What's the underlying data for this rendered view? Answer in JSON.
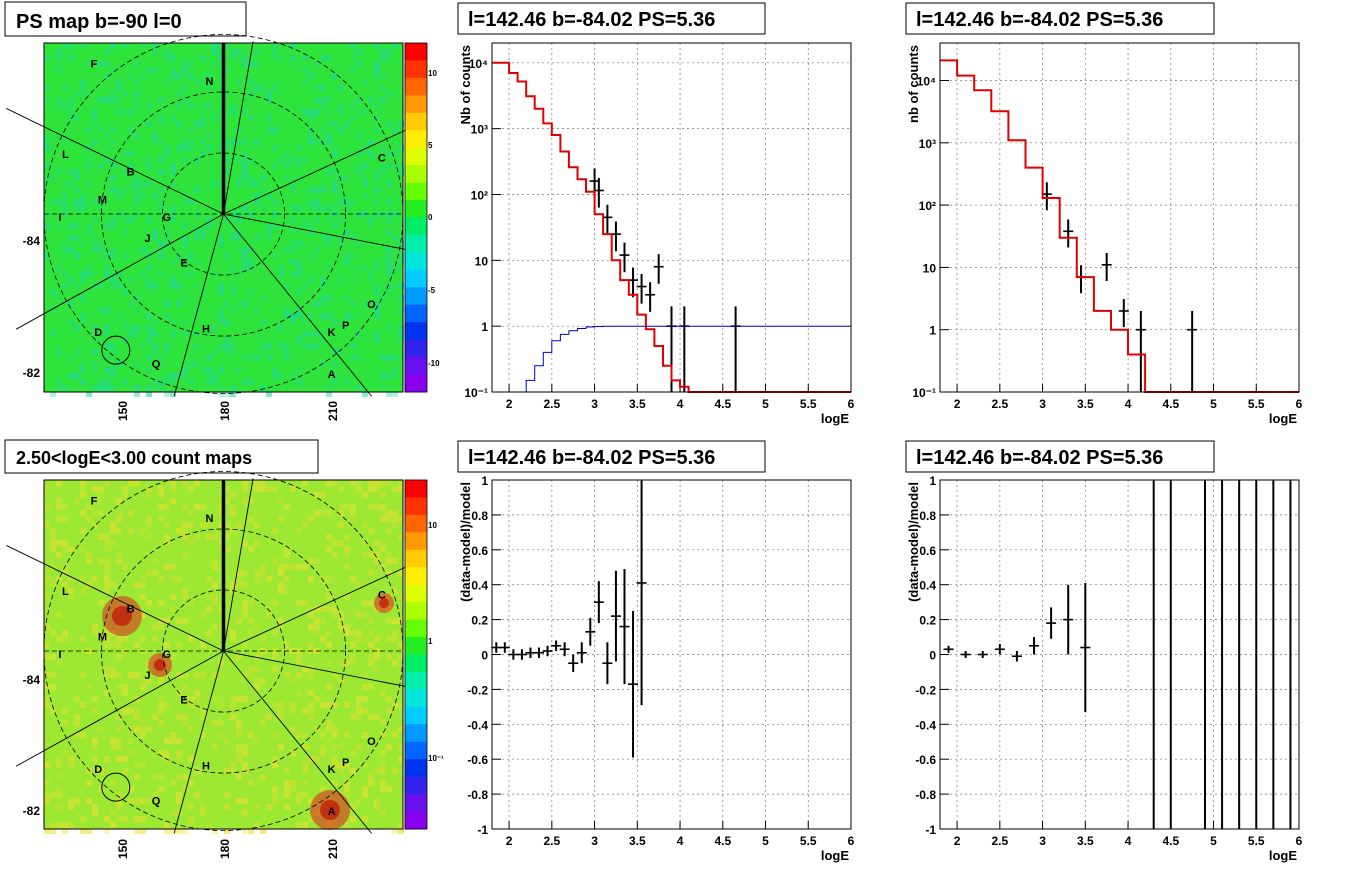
{
  "maps": [
    {
      "title": "PS map b=-90 l=0",
      "x_ticks": [
        "150",
        "180",
        "210"
      ],
      "y_ticks": [
        "-84",
        "-82"
      ],
      "palette_ticks": [
        "10",
        "5",
        "0",
        "-5",
        "-10"
      ],
      "colors": {
        "bg": "#2ee43a",
        "tint": "#1fd6a0"
      }
    },
    {
      "title": "2.50<logE<3.00 count maps",
      "x_ticks": [
        "150",
        "180",
        "210"
      ],
      "y_ticks": [
        "-84",
        "-82"
      ],
      "palette_ticks": [
        "10",
        "1",
        "10⁻¹"
      ],
      "colors": {
        "bg": "#9de832",
        "tint": "#e8e030"
      }
    }
  ],
  "source_labels": [
    "F",
    "N",
    "L",
    "C",
    "B",
    "M",
    "I",
    "G",
    "J",
    "E",
    "O",
    "P",
    "D",
    "H",
    "K",
    "Q",
    "A"
  ],
  "chart_data": [
    {
      "type": "line",
      "title": "l=142.46 b=-84.02 PS=5.36",
      "xlabel": "logE",
      "ylabel": "Nb of counts",
      "xlim": [
        1.8,
        6.0
      ],
      "ylim": [
        0.1,
        20000
      ],
      "log_y": true,
      "grid": true,
      "x_ticks": [
        "2",
        "2.5",
        "3",
        "3.5",
        "4",
        "4.5",
        "5",
        "5.5",
        "6"
      ],
      "y_ticks": [
        "10⁴",
        "10³",
        "10²",
        "10",
        "1",
        "10⁻¹"
      ],
      "series": [
        {
          "style": "data-points",
          "color": "#000000",
          "x": [
            3.0,
            3.05,
            3.15,
            3.25,
            3.35,
            3.45,
            3.55,
            3.65,
            3.75,
            3.9,
            4.05,
            4.65
          ],
          "y": [
            160,
            115,
            45,
            25,
            12,
            5,
            4,
            3,
            8,
            1,
            1,
            1
          ]
        },
        {
          "style": "step",
          "color": "#e00000",
          "x": [
            1.8,
            2.0,
            2.1,
            2.2,
            2.3,
            2.4,
            2.5,
            2.6,
            2.7,
            2.8,
            2.9,
            3.0,
            3.1,
            3.2,
            3.3,
            3.4,
            3.5,
            3.6,
            3.7,
            3.8,
            3.9,
            4.0,
            4.1,
            6.0
          ],
          "y": [
            10000,
            7000,
            5200,
            3100,
            2000,
            1200,
            800,
            450,
            260,
            170,
            110,
            50,
            25,
            10,
            5,
            3,
            1.5,
            0.9,
            0.5,
            0.25,
            0.15,
            0.12,
            0.1,
            0.1
          ]
        },
        {
          "style": "step",
          "color": "#0000cc",
          "x": [
            2.1,
            2.2,
            2.3,
            2.4,
            2.5,
            2.6,
            2.7,
            2.8,
            2.9,
            3.0,
            3.1,
            6.0
          ],
          "y": [
            0.1,
            0.15,
            0.25,
            0.4,
            0.6,
            0.75,
            0.85,
            0.92,
            0.97,
            0.99,
            1.0,
            1.0
          ]
        }
      ]
    },
    {
      "type": "line",
      "title": "l=142.46 b=-84.02 PS=5.36",
      "xlabel": "logE",
      "ylabel": "nb of counts",
      "xlim": [
        1.8,
        6.0
      ],
      "ylim": [
        0.1,
        40000
      ],
      "log_y": true,
      "grid": true,
      "x_ticks": [
        "2",
        "2.5",
        "3",
        "3.5",
        "4",
        "4.5",
        "5",
        "5.5",
        "6"
      ],
      "y_ticks": [
        "10⁴",
        "10³",
        "10²",
        "10",
        "1",
        "10⁻¹"
      ],
      "series": [
        {
          "style": "data-points",
          "color": "#000000",
          "x": [
            3.05,
            3.3,
            3.45,
            3.75,
            3.95,
            4.15,
            4.75
          ],
          "y": [
            150,
            38,
            7,
            11,
            2,
            1,
            1
          ]
        },
        {
          "style": "step",
          "color": "#e00000",
          "x": [
            1.8,
            2.0,
            2.2,
            2.4,
            2.6,
            2.8,
            3.0,
            3.2,
            3.4,
            3.6,
            3.8,
            4.0,
            4.2,
            6.0
          ],
          "y": [
            21000,
            12000,
            7000,
            3200,
            1100,
            400,
            130,
            30,
            7,
            2,
            1,
            0.4,
            0.1,
            0.1
          ]
        }
      ]
    },
    {
      "type": "scatter",
      "title": "l=142.46 b=-84.02 PS=5.36",
      "xlabel": "logE",
      "ylabel": "(data-model)/model",
      "xlim": [
        1.8,
        6.0
      ],
      "ylim": [
        -1,
        1
      ],
      "grid": true,
      "x_ticks": [
        "2",
        "2.5",
        "3",
        "3.5",
        "4",
        "4.5",
        "5",
        "5.5",
        "6"
      ],
      "y_ticks": [
        "1",
        "0.8",
        "0.6",
        "0.4",
        "0.2",
        "0",
        "-0.2",
        "-0.4",
        "-0.6",
        "-0.8",
        "-1"
      ],
      "series": [
        {
          "style": "data-points",
          "color": "#000000",
          "x": [
            1.85,
            1.95,
            2.05,
            2.15,
            2.25,
            2.35,
            2.45,
            2.55,
            2.65,
            2.75,
            2.85,
            2.95,
            3.05,
            3.15,
            3.25,
            3.35,
            3.45,
            3.55
          ],
          "y": [
            0.04,
            0.04,
            0.0,
            0.0,
            0.01,
            0.01,
            0.02,
            0.05,
            0.03,
            -0.05,
            0.01,
            0.13,
            0.3,
            -0.05,
            0.22,
            0.16,
            -0.17,
            0.41
          ],
          "err": [
            0.03,
            0.03,
            0.03,
            0.03,
            0.03,
            0.03,
            0.03,
            0.03,
            0.04,
            0.05,
            0.06,
            0.08,
            0.12,
            0.12,
            0.26,
            0.33,
            0.42,
            0.7
          ]
        }
      ]
    },
    {
      "type": "scatter",
      "title": "l=142.46 b=-84.02 PS=5.36",
      "xlabel": "logE",
      "ylabel": "(data-model)/model",
      "xlim": [
        1.8,
        6.0
      ],
      "ylim": [
        -1,
        1
      ],
      "grid": true,
      "x_ticks": [
        "2",
        "2.5",
        "3",
        "3.5",
        "4",
        "4.5",
        "5",
        "5.5",
        "6"
      ],
      "y_ticks": [
        "1",
        "0.8",
        "0.6",
        "0.4",
        "0.2",
        "0",
        "-0.2",
        "-0.4",
        "-0.6",
        "-0.8",
        "-1"
      ],
      "series": [
        {
          "style": "data-points",
          "color": "#000000",
          "x": [
            1.9,
            2.1,
            2.3,
            2.5,
            2.7,
            2.9,
            3.1,
            3.3,
            3.5
          ],
          "y": [
            0.03,
            0.0,
            0.0,
            0.03,
            -0.01,
            0.05,
            0.18,
            0.2,
            0.04
          ],
          "err": [
            0.02,
            0.02,
            0.02,
            0.03,
            0.03,
            0.05,
            0.09,
            0.2,
            0.37
          ]
        },
        {
          "style": "vertical-lines",
          "color": "#000000",
          "x": [
            4.3,
            4.5,
            4.9,
            5.1,
            5.3,
            5.5,
            5.7,
            5.9
          ]
        }
      ]
    }
  ]
}
